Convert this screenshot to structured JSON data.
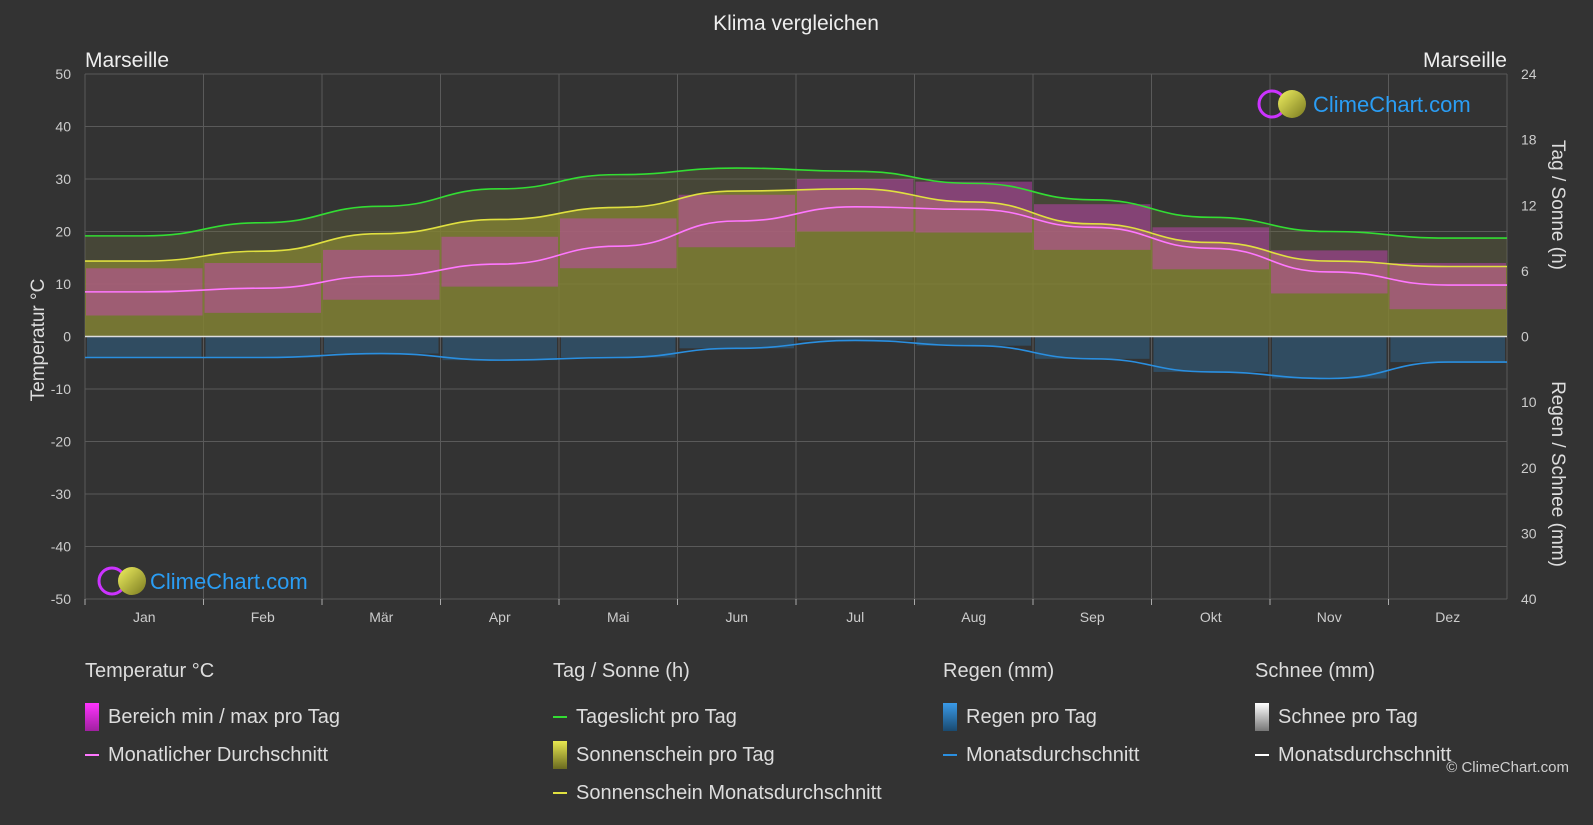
{
  "title": "Klima vergleichen",
  "location_left": "Marseille",
  "location_right": "Marseille",
  "brand": "ClimeChart.com",
  "copyright": "© ClimeChart.com",
  "colors": {
    "background": "#333333",
    "grid": "#5a5a5a",
    "daylight": "#33dd33",
    "sunshine_avg": "#e0e040",
    "sunshine_fill": "#8f8f2c",
    "temp_range": "#d040c0",
    "temp_avg": "#ff77ff",
    "rain": "#2a7ab8",
    "rain_avg": "#2a8fe0",
    "snow": "#bbbbbb",
    "snow_avg": "#ffffff",
    "logo_text": "#2a9df4"
  },
  "chart_data": {
    "type": "line",
    "categories": [
      "Jan",
      "Feb",
      "Mär",
      "Apr",
      "Mai",
      "Jun",
      "Jul",
      "Aug",
      "Sep",
      "Okt",
      "Nov",
      "Dez"
    ],
    "axes": {
      "left_label": "Temperatur °C",
      "left_ticks": [
        50,
        40,
        30,
        20,
        10,
        0,
        -10,
        -20,
        -30,
        -40,
        -50
      ],
      "left_range": [
        -50,
        50
      ],
      "right_top_label": "Tag / Sonne (h)",
      "right_top_ticks": [
        24,
        18,
        12,
        6,
        0
      ],
      "right_top_range": [
        0,
        24
      ],
      "right_bottom_label": "Regen / Schnee (mm)",
      "right_bottom_ticks": [
        0,
        10,
        20,
        30,
        40
      ],
      "right_bottom_range": [
        0,
        40
      ]
    },
    "series": [
      {
        "name": "Tageslicht pro Tag",
        "axis": "sun_h",
        "values": [
          9.2,
          10.4,
          11.9,
          13.5,
          14.8,
          15.4,
          15.1,
          14.0,
          12.5,
          10.9,
          9.6,
          9.0
        ]
      },
      {
        "name": "Sonnenschein Monatsdurchschnitt",
        "axis": "sun_h",
        "values": [
          6.9,
          7.8,
          9.4,
          10.7,
          11.8,
          13.3,
          13.5,
          12.3,
          10.3,
          8.6,
          6.9,
          6.4
        ]
      },
      {
        "name": "Monatlicher Durchschnitt",
        "axis": "temp_c",
        "values": [
          8.5,
          9.2,
          11.5,
          13.8,
          17.2,
          22.0,
          24.7,
          24.2,
          20.8,
          16.8,
          12.3,
          9.8
        ]
      },
      {
        "name": "Bereich min / max pro Tag",
        "axis": "temp_c",
        "min": [
          4.0,
          4.5,
          7.0,
          9.5,
          13.0,
          17.0,
          20.0,
          19.8,
          16.5,
          12.8,
          8.2,
          5.2
        ],
        "max": [
          13.0,
          14.0,
          16.5,
          19.0,
          22.5,
          27.0,
          30.0,
          29.5,
          25.2,
          20.8,
          16.4,
          14.0
        ]
      },
      {
        "name": "Regen Monatsdurchschnitt",
        "axis": "precip_mm",
        "values": [
          3.2,
          3.2,
          2.6,
          3.6,
          3.2,
          1.8,
          0.6,
          1.4,
          3.4,
          5.4,
          6.4,
          3.9
        ]
      },
      {
        "name": "Schnee Monatsdurchschnitt",
        "axis": "precip_mm",
        "values": [
          0,
          0,
          0,
          0,
          0,
          0,
          0,
          0,
          0,
          0,
          0,
          0
        ]
      }
    ]
  },
  "legend": {
    "groups": [
      {
        "title": "Temperatur °C",
        "items": [
          {
            "label": "Bereich min / max pro Tag",
            "kind": "box",
            "color": "#d040c0"
          },
          {
            "label": "Monatlicher Durchschnitt",
            "kind": "line",
            "color": "#ff77ff"
          }
        ]
      },
      {
        "title": "Tag / Sonne (h)",
        "items": [
          {
            "label": "Tageslicht pro Tag",
            "kind": "line",
            "color": "#33dd33"
          },
          {
            "label": "Sonnenschein pro Tag",
            "kind": "box",
            "color": "#c8c83a"
          },
          {
            "label": "Sonnenschein Monatsdurchschnitt",
            "kind": "line",
            "color": "#e0e040"
          }
        ]
      },
      {
        "title": "Regen (mm)",
        "items": [
          {
            "label": "Regen pro Tag",
            "kind": "box",
            "color": "#2a7ab8"
          },
          {
            "label": "Monatsdurchschnitt",
            "kind": "line",
            "color": "#2a8fe0"
          }
        ]
      },
      {
        "title": "Schnee (mm)",
        "items": [
          {
            "label": "Schnee pro Tag",
            "kind": "box",
            "color": "#cccccc"
          },
          {
            "label": "Monatsdurchschnitt",
            "kind": "line",
            "color": "#ffffff"
          }
        ]
      }
    ]
  }
}
